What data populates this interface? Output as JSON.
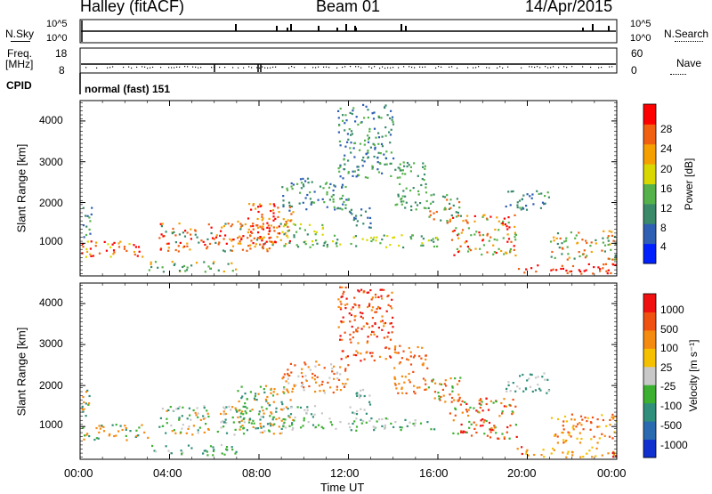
{
  "header": {
    "site": "Halley (fitACF)",
    "beam": "Beam 01",
    "date": "14/Apr/2015"
  },
  "strip_labels": {
    "noise_sky": "N.Sky",
    "noise_search": "N.Search",
    "noise_ticks": [
      "10^5",
      "10^0"
    ],
    "freq_top": "Freq.",
    "freq_unit": "[MHz]",
    "freq_ticks": [
      "18",
      "8"
    ],
    "nave": "Nave",
    "nave_ticks": [
      "60",
      "0"
    ],
    "cpid": "CPID",
    "cpid_value": "normal (fast) 151"
  },
  "chart_data": [
    {
      "type": "heatmap",
      "name": "power",
      "title": "",
      "ylabel": "Slant Range [km]",
      "xlabel": "",
      "ylim": [
        200,
        4500
      ],
      "yticks": [
        "1000",
        "2000",
        "3000",
        "4000"
      ],
      "colorbar_label": "Power [dB]",
      "colorbar_ticks": [
        "28",
        "24",
        "20",
        "16",
        "12",
        "8",
        "4"
      ],
      "colors": [
        "#0020ff",
        "#2e5fb3",
        "#3a8a6a",
        "#55b24a",
        "#d8d800",
        "#f5a000",
        "#f06010",
        "#ff0000"
      ]
    },
    {
      "type": "heatmap",
      "name": "velocity",
      "title": "",
      "ylabel": "Slant Range [km]",
      "xlabel": "Time UT",
      "ylim": [
        200,
        4500
      ],
      "yticks": [
        "1000",
        "2000",
        "3000",
        "4000"
      ],
      "colorbar_label": "Velocity [m s⁻¹]",
      "colorbar_ticks": [
        "1000",
        "500",
        "100",
        "25",
        "-25",
        "-100",
        "-500",
        "-1000"
      ],
      "xticks": [
        "00:00",
        "04:00",
        "08:00",
        "12:00",
        "16:00",
        "20:00",
        "00:00"
      ],
      "colors": [
        "#1030d0",
        "#2a6ab0",
        "#2f8f7a",
        "#3cb030",
        "#c8c8c8",
        "#f5c000",
        "#f58a10",
        "#f05010",
        "#f01010"
      ]
    }
  ]
}
